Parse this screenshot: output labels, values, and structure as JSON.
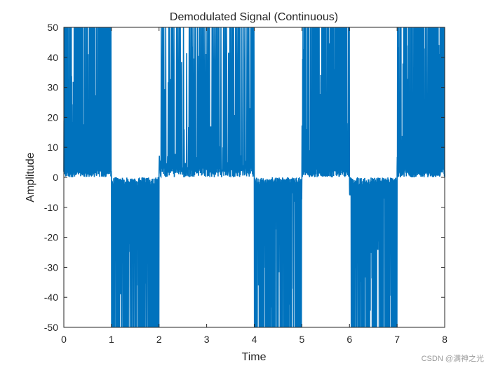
{
  "chart_data": {
    "type": "line",
    "title": "Demodulated Signal (Continuous)",
    "xlabel": "Time",
    "ylabel": "Amplitude",
    "xlim": [
      0,
      8
    ],
    "ylim": [
      -50,
      50
    ],
    "xticks": [
      0,
      1,
      2,
      3,
      4,
      5,
      6,
      7,
      8
    ],
    "yticks": [
      -50,
      -40,
      -30,
      -20,
      -10,
      0,
      10,
      20,
      30,
      40,
      50
    ],
    "grid": false,
    "series": [
      {
        "name": "demodulated",
        "color": "#0072BD",
        "clip_limit": 50,
        "segments": [
          {
            "start": 0.0,
            "end": 1.0,
            "sign": 1
          },
          {
            "start": 1.0,
            "end": 2.0,
            "sign": -1
          },
          {
            "start": 2.0,
            "end": 4.0,
            "sign": 1
          },
          {
            "start": 4.0,
            "end": 5.0,
            "sign": -1
          },
          {
            "start": 5.0,
            "end": 6.0,
            "sign": 1
          },
          {
            "start": 6.0,
            "end": 7.0,
            "sign": -1
          },
          {
            "start": 7.0,
            "end": 8.0,
            "sign": 1
          }
        ]
      }
    ]
  },
  "watermark": "CSDN @满神之光"
}
